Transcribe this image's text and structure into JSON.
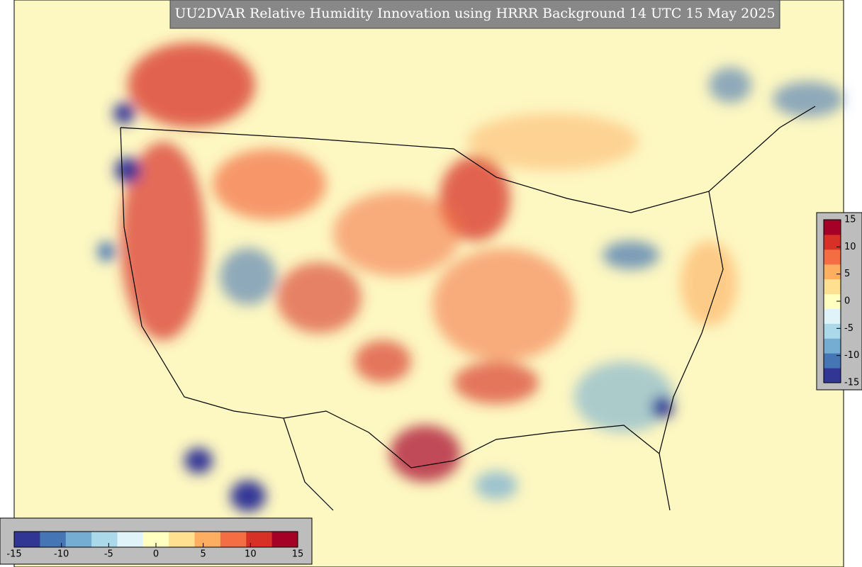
{
  "title": "UU2DVAR Relative Humidity Innovation using HRRR Background 14 UTC 15 May 2025",
  "colorbars": [
    {
      "orientation": "horizontal",
      "range": [
        -15,
        15
      ],
      "ticks": [
        -15,
        -10,
        -5,
        0,
        5,
        10,
        15
      ]
    },
    {
      "orientation": "vertical",
      "range": [
        -15,
        15
      ],
      "ticks": [
        -15,
        -10,
        -5,
        0,
        5,
        10,
        15
      ]
    }
  ],
  "colors": [
    "#313695",
    "#4575b4",
    "#74add1",
    "#abd9e9",
    "#e0f3f8",
    "#ffffbf",
    "#fee090",
    "#fdae61",
    "#f46d43",
    "#d73027",
    "#a50026"
  ]
}
